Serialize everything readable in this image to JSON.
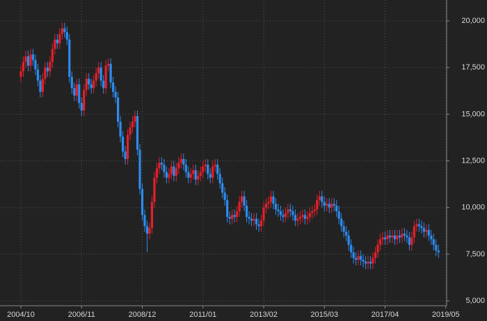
{
  "chart_data": {
    "type": "candlestick",
    "x": [
      "2004/10",
      "2004/11",
      "2004/12",
      "2005/01",
      "2005/02",
      "2005/03",
      "2005/04",
      "2005/05",
      "2005/06",
      "2005/07",
      "2005/08",
      "2005/09",
      "2005/10",
      "2005/11",
      "2005/12",
      "2006/01",
      "2006/02",
      "2006/03",
      "2006/04",
      "2006/05",
      "2006/06",
      "2006/07",
      "2006/08",
      "2006/09",
      "2006/10",
      "2006/11",
      "2006/12",
      "2007/01",
      "2007/02",
      "2007/03",
      "2007/04",
      "2007/05",
      "2007/06",
      "2007/07",
      "2007/08",
      "2007/09",
      "2007/10",
      "2007/11",
      "2007/12",
      "2008/01",
      "2008/02",
      "2008/03",
      "2008/04",
      "2008/05",
      "2008/06",
      "2008/07",
      "2008/08",
      "2008/09",
      "2008/10",
      "2008/11",
      "2008/12",
      "2009/01",
      "2009/02",
      "2009/03",
      "2009/04",
      "2009/05",
      "2009/06",
      "2009/07",
      "2009/08",
      "2009/09",
      "2009/10",
      "2009/11",
      "2009/12",
      "2010/01",
      "2010/02",
      "2010/03",
      "2010/04",
      "2010/05",
      "2010/06",
      "2010/07",
      "2010/08",
      "2010/09",
      "2010/10",
      "2010/11",
      "2010/12",
      "2011/01",
      "2011/02",
      "2011/03",
      "2011/04",
      "2011/05",
      "2011/06",
      "2011/07",
      "2011/08",
      "2011/09",
      "2011/10",
      "2011/11",
      "2011/12",
      "2012/01",
      "2012/02",
      "2012/03",
      "2012/04",
      "2012/05",
      "2012/06",
      "2012/07",
      "2012/08",
      "2012/09",
      "2012/10",
      "2012/11",
      "2012/12",
      "2013/01",
      "2013/02",
      "2013/03",
      "2013/04",
      "2013/05",
      "2013/06",
      "2013/07",
      "2013/08",
      "2013/09",
      "2013/10",
      "2013/11",
      "2013/12",
      "2014/01",
      "2014/02",
      "2014/03",
      "2014/04",
      "2014/05",
      "2014/06",
      "2014/07",
      "2014/08",
      "2014/09",
      "2014/10",
      "2014/11",
      "2014/12",
      "2015/01",
      "2015/02",
      "2015/03",
      "2015/04",
      "2015/05",
      "2015/06",
      "2015/07",
      "2015/08",
      "2015/09",
      "2015/10",
      "2015/11",
      "2015/12",
      "2016/01",
      "2016/02",
      "2016/03",
      "2016/04",
      "2016/05",
      "2016/06",
      "2016/07",
      "2016/08",
      "2016/09",
      "2016/10",
      "2016/11",
      "2016/12",
      "2017/01",
      "2017/02",
      "2017/03",
      "2017/04",
      "2017/05",
      "2017/06",
      "2017/07",
      "2017/08",
      "2017/09",
      "2017/10",
      "2017/11",
      "2017/12",
      "2018/01",
      "2018/02",
      "2018/03",
      "2018/04",
      "2018/05",
      "2018/06",
      "2018/07",
      "2018/08",
      "2018/09",
      "2018/10",
      "2018/11",
      "2018/12",
      "2019/01",
      "2019/02"
    ],
    "open": [
      17000,
      17300,
      17800,
      18100,
      17600,
      18200,
      17900,
      17400,
      16800,
      16200,
      16900,
      17500,
      17300,
      17800,
      18500,
      19000,
      18800,
      19300,
      19600,
      19400,
      19000,
      17000,
      16400,
      16000,
      16600,
      15600,
      15200,
      16300,
      16900,
      16600,
      16400,
      16800,
      17200,
      17500,
      16800,
      16400,
      17600,
      17700,
      16700,
      16200,
      15900,
      14600,
      13800,
      13000,
      12600,
      13900,
      14300,
      14600,
      14900,
      13100,
      11000,
      9600,
      9000,
      8600,
      8900,
      10300,
      11600,
      12100,
      12400,
      12300,
      11900,
      11600,
      11800,
      12200,
      11700,
      12100,
      12400,
      12600,
      12300,
      11900,
      11600,
      11800,
      12000,
      11500,
      11700,
      11900,
      12200,
      12300,
      11800,
      11600,
      12200,
      12300,
      11800,
      11300,
      10800,
      10400,
      9500,
      9400,
      9600,
      9500,
      9800,
      10300,
      10600,
      10100,
      9500,
      9400,
      9300,
      9400,
      9100,
      9000,
      9300,
      10000,
      10200,
      10300,
      10600,
      10200,
      9900,
      9800,
      9600,
      9500,
      9700,
      9900,
      9800,
      9600,
      9300,
      9400,
      9500,
      9600,
      9400,
      9500,
      9700,
      9800,
      9900,
      10400,
      10600,
      10300,
      10100,
      10200,
      10000,
      10200,
      10100,
      9800,
      9400,
      9000,
      8700,
      8500,
      8000,
      7600,
      7300,
      7200,
      7400,
      7200,
      7100,
      7000,
      7100,
      7000,
      7300,
      7600,
      8000,
      8300,
      8400,
      8300,
      8500,
      8400,
      8500,
      8300,
      8500,
      8400,
      8600,
      8500,
      8400,
      8000,
      8400,
      9000,
      9100,
      9000,
      8900,
      8700,
      8800,
      8500,
      8300,
      8000,
      7700
    ],
    "high": [
      17600,
      18100,
      18400,
      18400,
      18500,
      18500,
      18200,
      17700,
      17100,
      17200,
      17800,
      17800,
      18100,
      18800,
      19300,
      19300,
      19600,
      19900,
      19900,
      19700,
      19300,
      17300,
      16700,
      16900,
      16900,
      15900,
      16600,
      17200,
      17200,
      16900,
      17100,
      17500,
      17800,
      17800,
      17100,
      17900,
      18000,
      18000,
      17000,
      16500,
      16200,
      14900,
      14100,
      13300,
      14200,
      14600,
      14900,
      15200,
      15200,
      13400,
      11300,
      9900,
      9300,
      9200,
      10600,
      11900,
      12400,
      12700,
      12700,
      12600,
      12200,
      12100,
      12500,
      12500,
      12400,
      12700,
      12900,
      12900,
      12600,
      12200,
      12100,
      12300,
      12300,
      12000,
      12200,
      12500,
      12600,
      12600,
      12100,
      12500,
      12600,
      12600,
      12100,
      11600,
      11100,
      10700,
      9800,
      9900,
      9900,
      10100,
      10600,
      10900,
      10900,
      10400,
      9800,
      9700,
      9700,
      9700,
      9400,
      9600,
      10300,
      10500,
      10600,
      10900,
      10900,
      10500,
      10200,
      10100,
      9900,
      10000,
      10200,
      10200,
      10100,
      9900,
      9700,
      9800,
      9900,
      9900,
      9800,
      10000,
      10100,
      10200,
      10700,
      10900,
      10900,
      10600,
      10500,
      10500,
      10500,
      10500,
      10400,
      10100,
      9700,
      9300,
      9000,
      8800,
      8300,
      7900,
      7600,
      7700,
      7700,
      7500,
      7400,
      7400,
      7400,
      7600,
      7900,
      8300,
      8600,
      8700,
      8700,
      8800,
      8800,
      8800,
      8800,
      8800,
      8800,
      8900,
      8900,
      8800,
      8700,
      8700,
      9300,
      9400,
      9400,
      9300,
      9200,
      9100,
      9100,
      8800,
      8600,
      8300,
      8000
    ],
    "low": [
      16700,
      17000,
      17500,
      17300,
      17300,
      17600,
      17100,
      16500,
      15900,
      15900,
      16600,
      17000,
      17000,
      17500,
      18200,
      18500,
      18500,
      19000,
      19100,
      18700,
      16700,
      16100,
      15700,
      15700,
      15300,
      14900,
      14900,
      16000,
      16300,
      16100,
      16100,
      16500,
      16900,
      16500,
      16100,
      16100,
      17300,
      16400,
      15900,
      15600,
      14300,
      13500,
      12700,
      12300,
      12300,
      13600,
      14000,
      14300,
      12800,
      10700,
      9300,
      8700,
      7600,
      8300,
      8600,
      10000,
      11300,
      11800,
      12000,
      11600,
      11300,
      11300,
      11500,
      11400,
      11400,
      11800,
      12100,
      12000,
      11600,
      11300,
      11300,
      11500,
      11200,
      11200,
      11400,
      11600,
      11900,
      11500,
      11300,
      11300,
      11900,
      11500,
      11000,
      10500,
      10100,
      9200,
      9100,
      9100,
      9200,
      9200,
      9500,
      10000,
      9800,
      9200,
      9100,
      9000,
      9000,
      8800,
      8700,
      8700,
      9000,
      9700,
      9900,
      10000,
      9900,
      9600,
      9500,
      9300,
      9200,
      9200,
      9400,
      9500,
      9300,
      9000,
      9000,
      9100,
      9200,
      9100,
      9100,
      9200,
      9400,
      9500,
      9600,
      10100,
      10000,
      9800,
      9800,
      9700,
      9700,
      9800,
      9500,
      9100,
      8700,
      8400,
      8200,
      7700,
      7300,
      7000,
      6900,
      6900,
      6900,
      6800,
      6700,
      6700,
      6700,
      6700,
      7000,
      7300,
      7700,
      8000,
      8000,
      8000,
      8100,
      8100,
      8000,
      8000,
      8100,
      8100,
      8200,
      8100,
      7700,
      7700,
      8100,
      8700,
      8700,
      8600,
      8400,
      8400,
      8200,
      8000,
      7700,
      7400,
      7300
    ],
    "close": [
      17300,
      17800,
      18100,
      17600,
      18200,
      17900,
      17400,
      16800,
      16200,
      16900,
      17500,
      17300,
      17800,
      18500,
      19000,
      18800,
      19300,
      19600,
      19400,
      19000,
      17000,
      16400,
      16000,
      16600,
      15600,
      15200,
      16300,
      16900,
      16600,
      16400,
      16800,
      17200,
      17500,
      16800,
      16400,
      17600,
      17700,
      16700,
      16200,
      15900,
      14600,
      13800,
      13000,
      12600,
      13900,
      14300,
      14600,
      14900,
      13100,
      11000,
      9600,
      9000,
      8600,
      8900,
      10300,
      11600,
      12100,
      12400,
      12300,
      11900,
      11600,
      11800,
      12200,
      11700,
      12100,
      12400,
      12600,
      12300,
      11900,
      11600,
      11800,
      12000,
      11500,
      11700,
      11900,
      12200,
      12300,
      11800,
      11600,
      12200,
      12300,
      11800,
      11300,
      10800,
      10400,
      9500,
      9400,
      9600,
      9500,
      9800,
      10300,
      10600,
      10100,
      9500,
      9400,
      9300,
      9400,
      9100,
      9000,
      9300,
      10000,
      10200,
      10300,
      10600,
      10200,
      9900,
      9800,
      9600,
      9500,
      9700,
      9900,
      9800,
      9600,
      9300,
      9400,
      9500,
      9600,
      9400,
      9500,
      9700,
      9800,
      9900,
      10400,
      10600,
      10300,
      10100,
      10200,
      10000,
      10200,
      10100,
      9800,
      9400,
      9000,
      8700,
      8500,
      8000,
      7600,
      7300,
      7200,
      7400,
      7200,
      7100,
      7000,
      7100,
      7000,
      7300,
      7600,
      8000,
      8300,
      8400,
      8300,
      8500,
      8400,
      8500,
      8300,
      8500,
      8400,
      8600,
      8500,
      8400,
      8000,
      8400,
      9000,
      9100,
      9000,
      8900,
      8700,
      8800,
      8500,
      8300,
      8000,
      7700,
      7600
    ],
    "up_color": "#e4202b",
    "down_color": "#2d8cf0",
    "ylim": [
      4740,
      21120
    ],
    "yticks": [
      {
        "value": 5000,
        "label": "5,000"
      },
      {
        "value": 7500,
        "label": "7,500"
      },
      {
        "value": 10000,
        "label": "10,000"
      },
      {
        "value": 12500,
        "label": "12,500"
      },
      {
        "value": 15000,
        "label": "15,000"
      },
      {
        "value": 17500,
        "label": "17,500"
      },
      {
        "value": 20000,
        "label": "20,000"
      }
    ],
    "xticks": [
      "2004/10",
      "2006/11",
      "2008/12",
      "2011/01",
      "2013/02",
      "2015/03",
      "2017/04",
      "2019/05"
    ],
    "grid": true
  }
}
